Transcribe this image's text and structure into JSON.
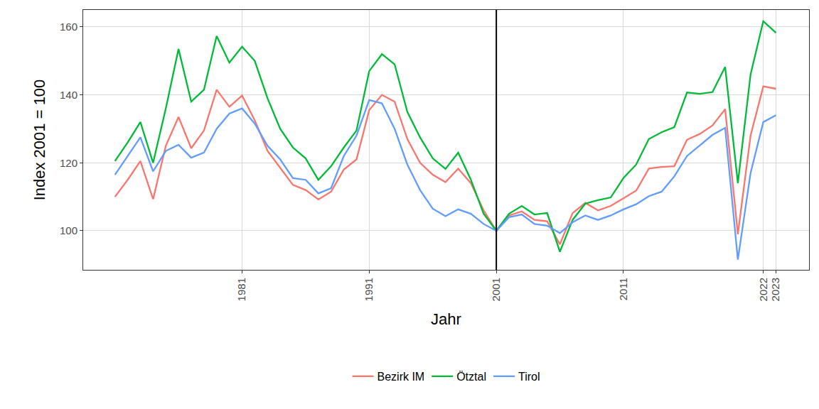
{
  "chart_data": {
    "type": "line",
    "x_label": "Jahr",
    "y_label": "Index 2001 = 100",
    "x": [
      1971,
      1972,
      1973,
      1974,
      1975,
      1976,
      1977,
      1978,
      1979,
      1980,
      1981,
      1982,
      1983,
      1984,
      1985,
      1986,
      1987,
      1988,
      1989,
      1990,
      1991,
      1992,
      1993,
      1994,
      1995,
      1996,
      1997,
      1998,
      1999,
      2000,
      2001,
      2002,
      2003,
      2004,
      2005,
      2006,
      2007,
      2008,
      2009,
      2010,
      2011,
      2012,
      2013,
      2014,
      2015,
      2016,
      2017,
      2018,
      2019,
      2020,
      2021,
      2022,
      2023
    ],
    "series": [
      {
        "name": "Bezirk IM",
        "color": "#F8766D",
        "values": [
          110,
          115,
          120.5,
          109.3,
          125,
          133.5,
          124.3,
          129.5,
          141.5,
          136.5,
          139.8,
          132.5,
          123.5,
          118.5,
          113.5,
          112,
          109.2,
          111.5,
          118,
          121,
          135.5,
          140,
          138,
          127,
          120,
          116.5,
          114.3,
          118.3,
          114,
          106,
          100,
          104.5,
          105.7,
          103.2,
          102.8,
          96,
          105.2,
          108.2,
          106,
          107.3,
          109.5,
          111.8,
          118.3,
          118.8,
          119,
          126.8,
          128.5,
          131,
          135.8,
          99,
          128,
          142.5,
          141.8
        ]
      },
      {
        "name": "Ötztal",
        "color": "#00BA38",
        "values": [
          120.5,
          126,
          132,
          120,
          136,
          153.5,
          138,
          141.5,
          157.3,
          149.5,
          154.2,
          150,
          139,
          130,
          124.5,
          121.3,
          115,
          119,
          124.5,
          129.5,
          147,
          152,
          149,
          135,
          127.5,
          121.3,
          118.2,
          123,
          115,
          105,
          100,
          105,
          107.3,
          104.8,
          105.2,
          93.8,
          103.2,
          108,
          109,
          109.8,
          115.5,
          119.5,
          127,
          129,
          130.5,
          140.7,
          140.3,
          140.8,
          148.2,
          114,
          146,
          161.7,
          158.3
        ]
      },
      {
        "name": "Tirol",
        "color": "#619CFF",
        "values": [
          116.5,
          122,
          127.5,
          117.5,
          123.5,
          125.3,
          121.5,
          123,
          130,
          134.5,
          136,
          131.5,
          125,
          121,
          115.5,
          115,
          111,
          112.5,
          122,
          128,
          138.5,
          137.5,
          130,
          119.5,
          112,
          106.5,
          104.3,
          106.3,
          105,
          102,
          100,
          104,
          104.8,
          102,
          101.5,
          99.3,
          102.5,
          104.5,
          103.2,
          104.5,
          106.3,
          107.8,
          110.2,
          111.5,
          116,
          122,
          125,
          128.2,
          130.3,
          91.5,
          117,
          132,
          134
        ]
      }
    ],
    "xlim": [
      1968.5,
      2025.6
    ],
    "xticks": [
      1981,
      1991,
      2001,
      2011,
      2022,
      2023
    ],
    "ylim": [
      88.5,
      165
    ],
    "yticks": [
      100,
      120,
      140,
      160
    ],
    "vline_x": 2001,
    "grid": true,
    "legend": "bottom"
  }
}
